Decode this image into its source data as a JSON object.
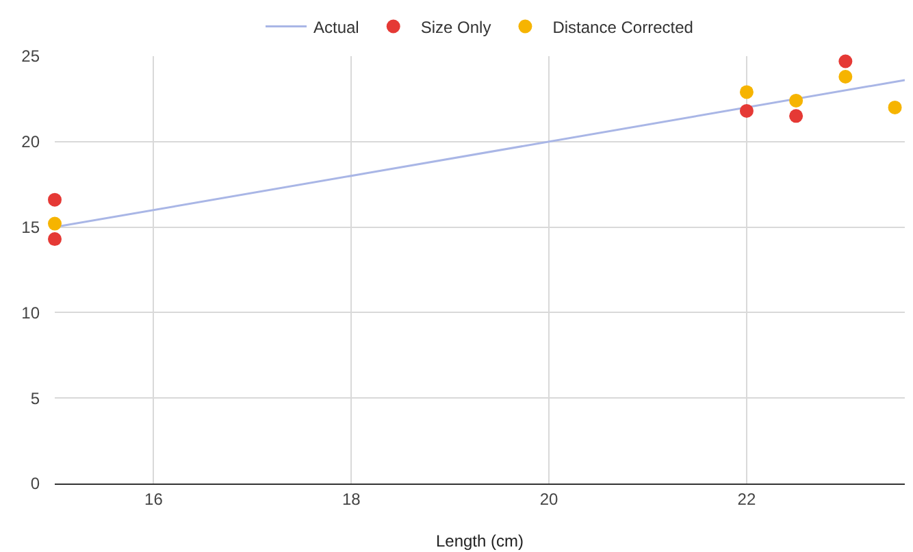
{
  "chart_data": {
    "type": "scatter",
    "xlabel": "Length (cm)",
    "xlim": [
      15,
      23.6
    ],
    "xticks": [
      16,
      18,
      20,
      22
    ],
    "ylim": [
      0,
      25
    ],
    "yticks": [
      0,
      5,
      10,
      15,
      20,
      25
    ],
    "grid": true,
    "legend": "top",
    "marker": "circle",
    "series": [
      {
        "name": "Actual",
        "type": "line",
        "color": "#a9b6e6",
        "marker": "none",
        "x": [
          15,
          23.6
        ],
        "values": [
          15,
          23.6
        ]
      },
      {
        "name": "Size Only",
        "color": "#e53935",
        "x": [
          15,
          15,
          22,
          22.5,
          23
        ],
        "values": [
          16.6,
          14.3,
          21.8,
          21.5,
          24.7
        ]
      },
      {
        "name": "Distance Corrected",
        "color": "#f6b400",
        "x": [
          15,
          22,
          22.5,
          23,
          23.5
        ],
        "values": [
          15.2,
          22.9,
          22.4,
          23.8,
          22.0
        ]
      }
    ]
  }
}
